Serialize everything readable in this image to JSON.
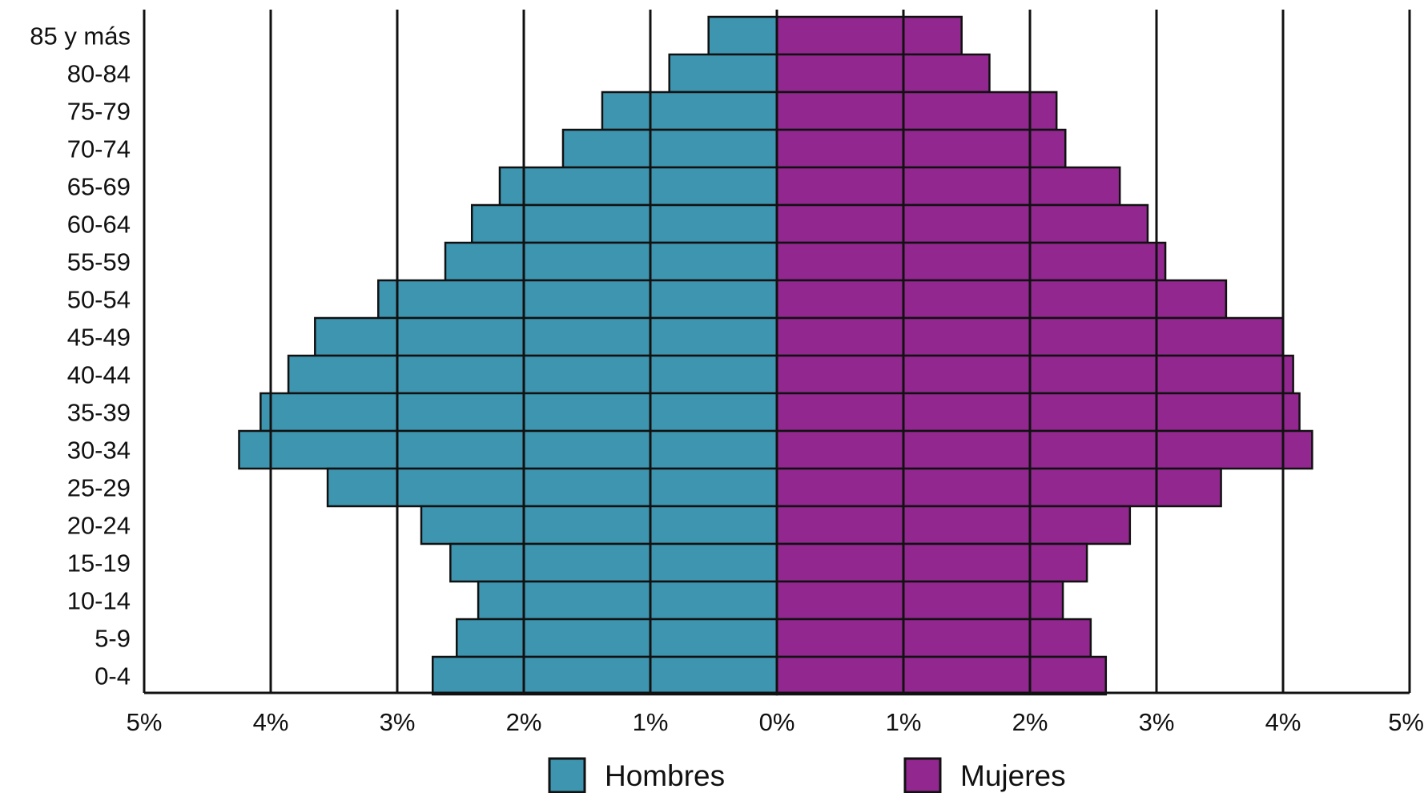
{
  "chart_data": {
    "type": "bar",
    "orientation": "horizontal",
    "layout": "population-pyramid",
    "categories": [
      "85 y más",
      "80-84",
      "75-79",
      "70-74",
      "65-69",
      "60-64",
      "55-59",
      "50-54",
      "45-49",
      "40-44",
      "35-39",
      "30-34",
      "25-29",
      "20-24",
      "15-19",
      "10-14",
      "5-9",
      "0-4"
    ],
    "series": [
      {
        "name": "Hombres",
        "side": "left",
        "color": "#3E95B0",
        "values": [
          0.54,
          0.85,
          1.38,
          1.69,
          2.19,
          2.41,
          2.62,
          3.15,
          3.65,
          3.86,
          4.08,
          4.25,
          3.55,
          2.81,
          2.58,
          2.36,
          2.53,
          2.72
        ]
      },
      {
        "name": "Mujeres",
        "side": "right",
        "color": "#92278F",
        "values": [
          1.46,
          1.68,
          2.21,
          2.28,
          2.71,
          2.93,
          3.07,
          3.55,
          4.0,
          4.08,
          4.13,
          4.23,
          3.51,
          2.79,
          2.45,
          2.26,
          2.48,
          2.6
        ]
      }
    ],
    "xlim": [
      -5,
      5
    ],
    "xticks": [
      "5%",
      "4%",
      "3%",
      "2%",
      "1%",
      "0%",
      "1%",
      "2%",
      "3%",
      "4%",
      "5%"
    ],
    "grid": "vertical",
    "legend": "bottom-center",
    "title": "",
    "xlabel": "",
    "ylabel": ""
  }
}
